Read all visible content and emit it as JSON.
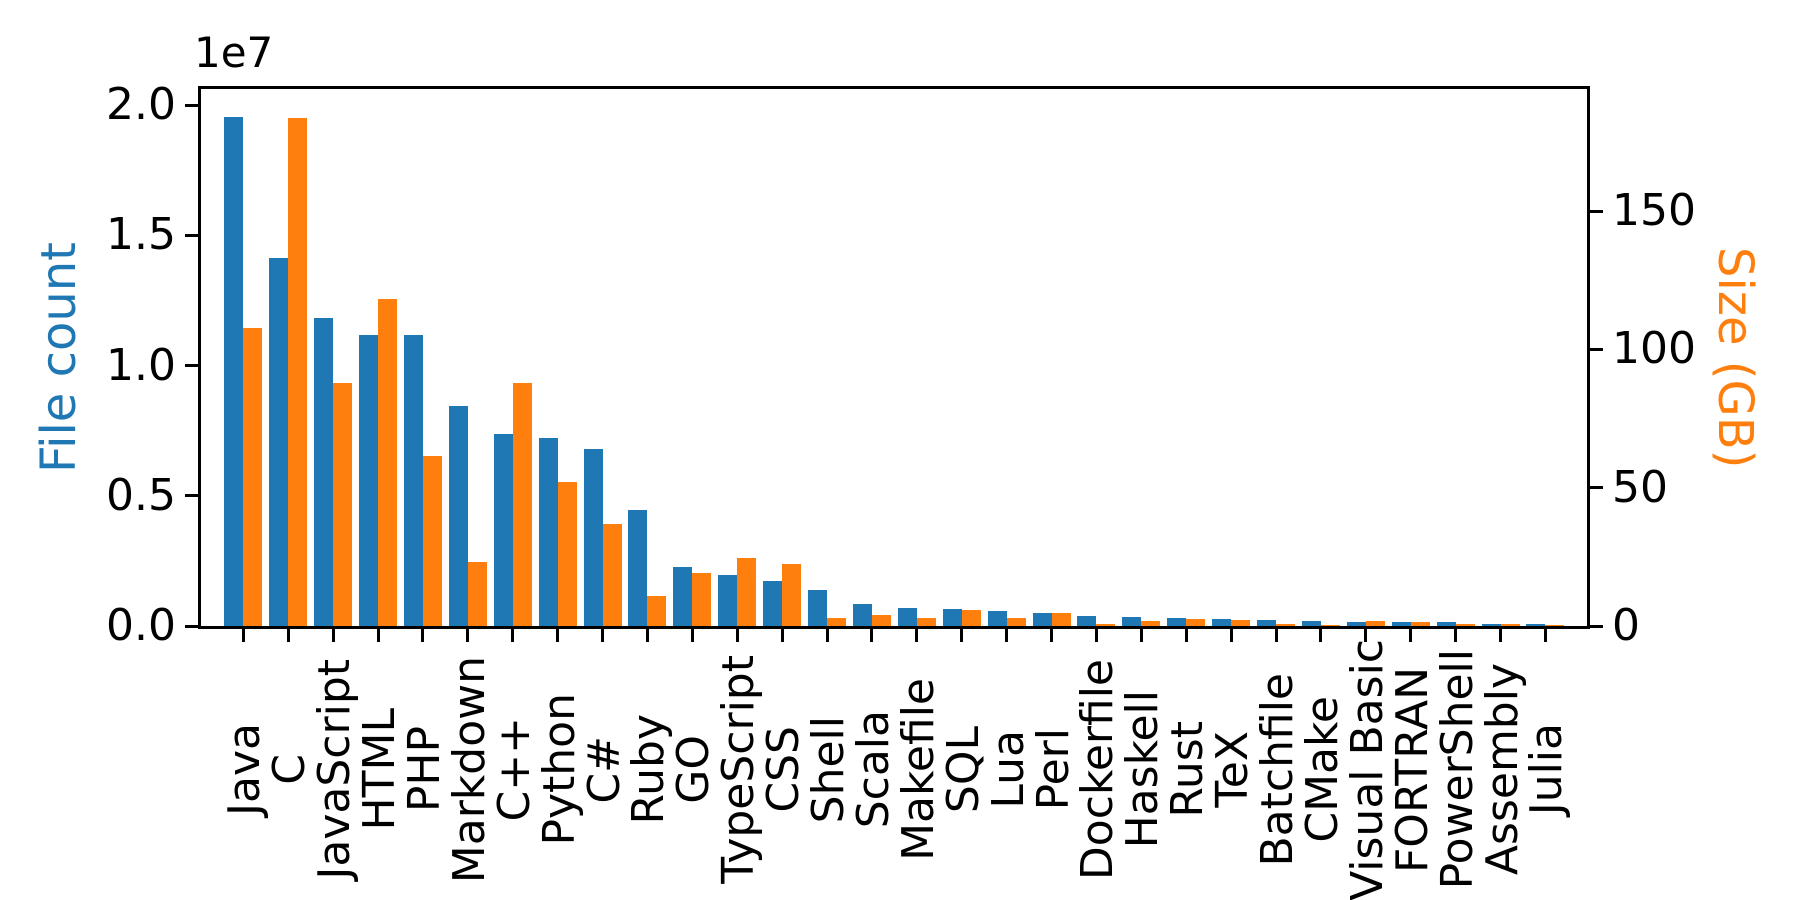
{
  "figure": {
    "background": "#ffffff",
    "spine_color": "#000000"
  },
  "left_axis": {
    "label": "File count",
    "color": "#1f77b4",
    "offset_text": "1e7",
    "tick_labels": [
      "2.0",
      "1.5",
      "1.0",
      "0.5",
      "0.0"
    ],
    "tick_values": [
      20000000,
      15000000,
      10000000,
      5000000,
      0
    ],
    "ylim": [
      0,
      20700000
    ]
  },
  "right_axis": {
    "label": "Size (GB)",
    "color": "#ff7f0e",
    "tick_labels": [
      "150",
      "100",
      "50",
      "0"
    ],
    "tick_values": [
      150,
      100,
      50,
      0
    ],
    "ylim": [
      0,
      194.8
    ]
  },
  "chart_data": {
    "type": "bar",
    "title": "",
    "xlabel": "",
    "ylabel_left": "File count",
    "ylabel_right": "Size (GB)",
    "grid": false,
    "legend": "none",
    "categories": [
      "Java",
      "C",
      "JavaScript",
      "HTML",
      "PHP",
      "Markdown",
      "C++",
      "Python",
      "C#",
      "Ruby",
      "GO",
      "TypeScript",
      "CSS",
      "Shell",
      "Scala",
      "Makefile",
      "SQL",
      "Lua",
      "Perl",
      "Dockerfile",
      "Haskell",
      "Rust",
      "TeX",
      "Batchfile",
      "CMake",
      "Visual Basic",
      "FORTRAN",
      "PowerShell",
      "Assembly",
      "Julia"
    ],
    "series": [
      {
        "name": "File count",
        "axis": "left",
        "color": "#1f77b4",
        "values": [
          19548190,
          14143113,
          11839883,
          11178557,
          11177610,
          8464626,
          7380520,
          7226626,
          6811652,
          4473331,
          2265436,
          1940406,
          1734406,
          1385648,
          835755,
          679430,
          656671,
          578554,
          497949,
          366505,
          340623,
          322431,
          251015,
          236945,
          175282,
          155652,
          142038,
          136846,
          82905,
          58317
        ]
      },
      {
        "name": "Size (GB)",
        "axis": "right",
        "color": "#ff7f0e",
        "values": [
          107.7,
          183.83,
          87.82,
          118.12,
          61.41,
          23.09,
          87.73,
          52.03,
          36.83,
          10.95,
          19.28,
          24.59,
          22.52,
          3.01,
          3.87,
          2.92,
          5.67,
          2.81,
          4.7,
          0.71,
          1.85,
          2.68,
          2.15,
          0.7,
          0.54,
          1.91,
          1.62,
          0.69,
          0.78,
          0.29
        ]
      }
    ]
  }
}
